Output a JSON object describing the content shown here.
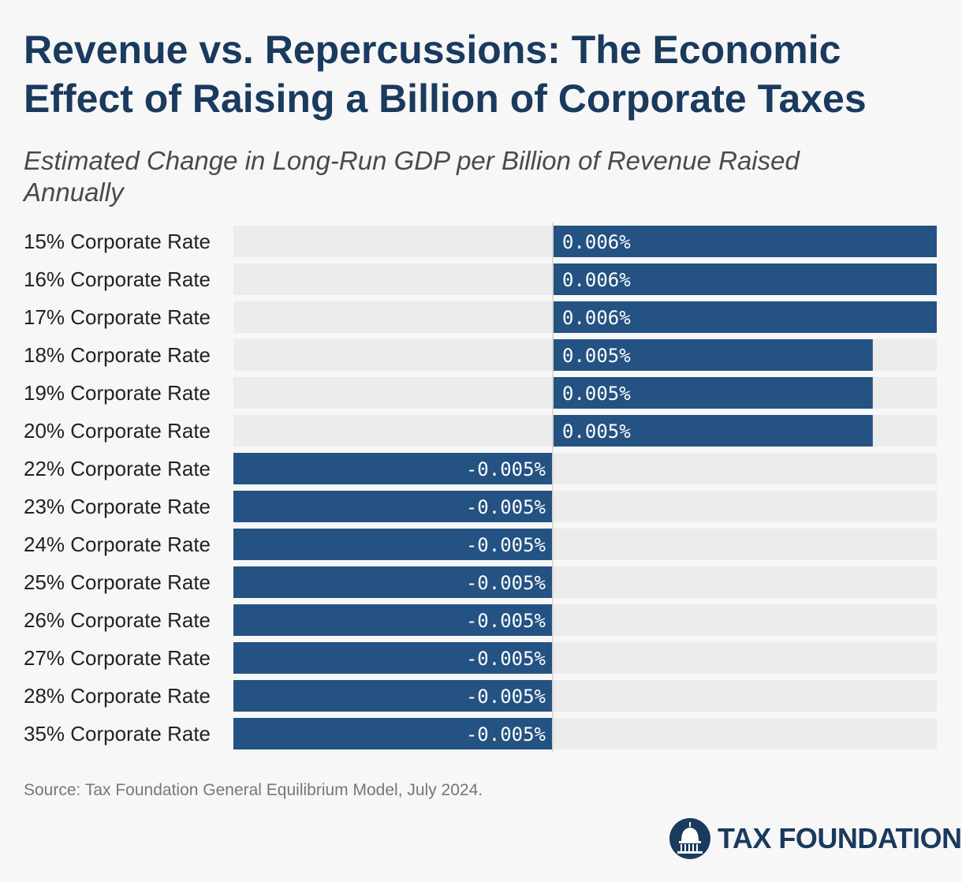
{
  "title": "Revenue vs. Repercussions: The Economic Effect of Raising a Billion of Corporate Taxes",
  "subtitle": "Estimated Change in Long-Run GDP per Billion of Revenue Raised Annually",
  "source": "Source: Tax Foundation General Equilibrium Model, July 2024.",
  "logo": {
    "text": "TAX FOUNDATION",
    "icon": "capitol-dome-icon"
  },
  "colors": {
    "bar": "#245283",
    "track": "#ececec",
    "background": "#f7f7f7",
    "title": "#1a3a5e"
  },
  "chart_data": {
    "type": "bar",
    "orientation": "horizontal",
    "categories": [
      "15% Corporate Rate",
      "16% Corporate Rate",
      "17% Corporate Rate",
      "18% Corporate Rate",
      "19% Corporate Rate",
      "20% Corporate Rate",
      "22% Corporate Rate",
      "23% Corporate Rate",
      "24% Corporate Rate",
      "25% Corporate Rate",
      "26% Corporate Rate",
      "27% Corporate Rate",
      "28% Corporate Rate",
      "35% Corporate Rate"
    ],
    "values": [
      0.006,
      0.006,
      0.006,
      0.005,
      0.005,
      0.005,
      -0.005,
      -0.005,
      -0.005,
      -0.005,
      -0.005,
      -0.005,
      -0.005,
      -0.005
    ],
    "value_labels": [
      "0.006%",
      "0.006%",
      "0.006%",
      "0.005%",
      "0.005%",
      "0.005%",
      "-0.005%",
      "-0.005%",
      "-0.005%",
      "-0.005%",
      "-0.005%",
      "-0.005%",
      "-0.005%",
      "-0.005%"
    ],
    "unit": "%",
    "xlim": [
      -0.005,
      0.006
    ],
    "grid": false,
    "legend": "none"
  }
}
